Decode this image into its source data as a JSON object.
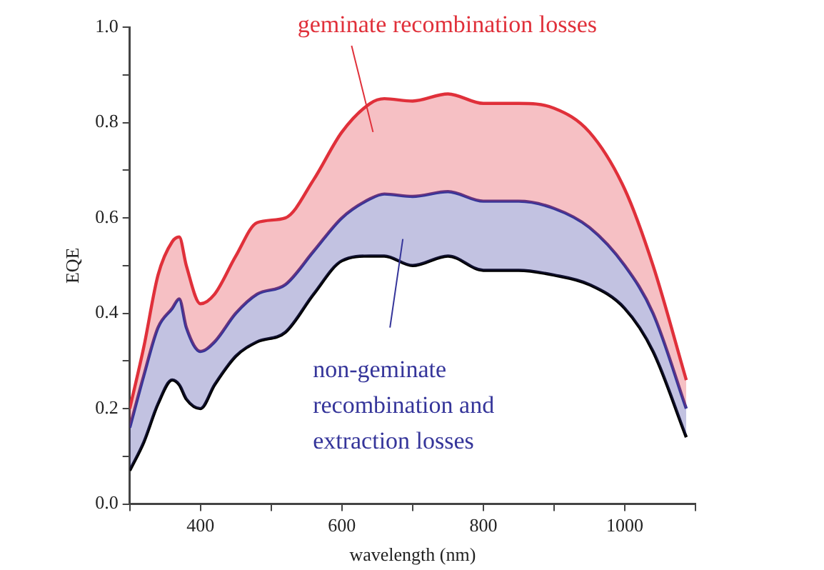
{
  "chart_data": {
    "type": "line",
    "xlabel": "wavelength (nm)",
    "ylabel": "EQE",
    "xlim": [
      300,
      1100
    ],
    "xticks": [
      {
        "value": 300,
        "label": null
      },
      400,
      {
        "value": 500,
        "label": null
      },
      600,
      {
        "value": 700,
        "label": null
      },
      800,
      {
        "value": 900,
        "label": null
      },
      1000,
      {
        "value": 1100,
        "label": null
      }
    ],
    "ylim": [
      0,
      1
    ],
    "yticks": [
      {
        "value": 0,
        "label": "0.0"
      },
      {
        "value": 0.1,
        "label": null
      },
      {
        "value": 0.2,
        "label": "0.2"
      },
      {
        "value": 0.3,
        "label": null
      },
      {
        "value": 0.4,
        "label": "0.4"
      },
      {
        "value": 0.5,
        "label": null
      },
      {
        "value": 0.6,
        "label": "0.6"
      },
      {
        "value": 0.7,
        "label": null
      },
      {
        "value": 0.8,
        "label": "0.8"
      },
      {
        "value": 0.9,
        "label": null
      },
      {
        "value": 1,
        "label": "1.0"
      }
    ],
    "grid": false,
    "legend": false,
    "marker": "none",
    "line_style": "solid",
    "x": [
      300,
      320,
      340,
      360,
      370,
      380,
      400,
      420,
      450,
      480,
      520,
      560,
      600,
      640,
      660,
      700,
      750,
      800,
      850,
      900,
      950,
      1000,
      1040,
      1087
    ],
    "series": [
      {
        "type": "area",
        "color": "#e0303a",
        "values": [
          0.2,
          0.33,
          0.48,
          0.55,
          0.56,
          0.5,
          0.42,
          0.44,
          0.52,
          0.59,
          0.6,
          0.68,
          0.78,
          0.84,
          0.85,
          0.845,
          0.86,
          0.84,
          0.84,
          0.83,
          0.78,
          0.66,
          0.5,
          0.26
        ]
      },
      {
        "type": "area",
        "color": "#35359a",
        "values": [
          0.16,
          0.27,
          0.37,
          0.41,
          0.43,
          0.37,
          0.32,
          0.34,
          0.4,
          0.44,
          0.46,
          0.53,
          0.6,
          0.64,
          0.65,
          0.645,
          0.655,
          0.635,
          0.635,
          0.62,
          0.58,
          0.5,
          0.4,
          0.2
        ]
      },
      {
        "type": "line",
        "color": "#000000",
        "values": [
          0.07,
          0.13,
          0.21,
          0.26,
          0.25,
          0.22,
          0.2,
          0.25,
          0.31,
          0.34,
          0.36,
          0.44,
          0.51,
          0.52,
          0.52,
          0.5,
          0.52,
          0.49,
          0.49,
          0.48,
          0.46,
          0.41,
          0.32,
          0.14
        ]
      }
    ],
    "annotations": [
      "geminate recombination losses",
      "non-geminate\nrecombination and\nextraction losses"
    ]
  }
}
